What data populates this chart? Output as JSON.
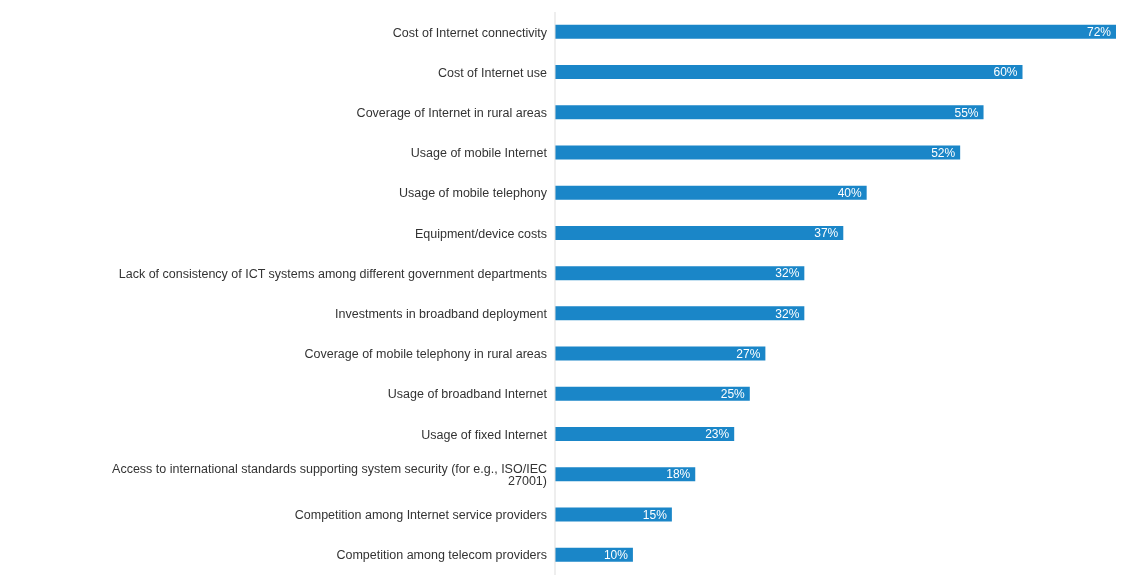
{
  "chart_data": {
    "type": "bar",
    "orientation": "horizontal",
    "color": "#1a86c8",
    "categories": [
      "Cost of Internet connectivity",
      "Cost of Internet use",
      "Coverage of Internet in rural areas",
      "Usage of mobile Internet",
      "Usage of mobile telephony",
      "Equipment/device costs",
      "Lack of consistency of ICT systems among different government departments",
      "Investments in broadband deployment",
      "Coverage of mobile telephony in rural areas",
      "Usage of broadband Internet",
      "Usage of fixed Internet",
      "Access to international standards supporting system security (for e.g., ISO/IEC 27001)",
      "Competition among Internet service providers",
      "Competition among telecom providers"
    ],
    "values": [
      72,
      60,
      55,
      52,
      40,
      37,
      32,
      32,
      27,
      25,
      23,
      18,
      15,
      10
    ],
    "value_labels": [
      "72%",
      "60%",
      "55%",
      "52%",
      "40%",
      "37%",
      "32%",
      "32%",
      "27%",
      "25%",
      "23%",
      "18%",
      "15%",
      "10%"
    ],
    "tick_labels": "y",
    "grid": false,
    "legend": false
  }
}
